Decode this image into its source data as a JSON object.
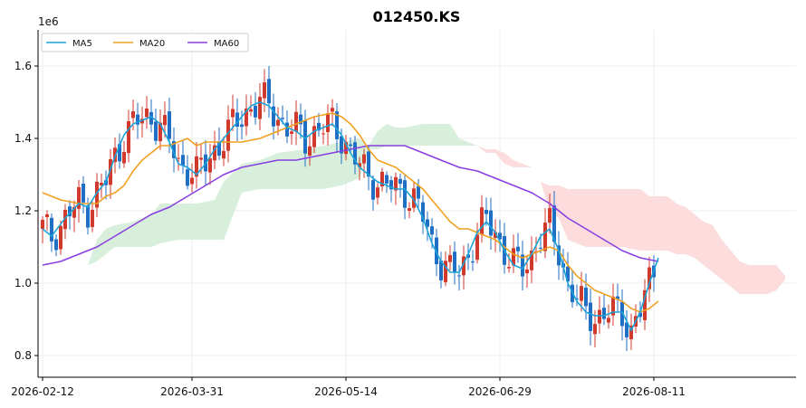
{
  "chart_data": {
    "type": "candlestick",
    "title": "012450.KS",
    "y_scale_label": "1e6",
    "xlabel": "",
    "ylabel": "",
    "ylim": [
      0.74,
      1.7
    ],
    "y_ticks": [
      0.8,
      1.0,
      1.2,
      1.4,
      1.6
    ],
    "y_tick_labels": [
      "0.8",
      "1.0",
      "1.2",
      "1.4",
      "1.6"
    ],
    "x_tick_labels": [
      {
        "index": 0,
        "label": "2026-02-12"
      },
      {
        "index": 33,
        "label": "2026-03-31"
      },
      {
        "index": 67,
        "label": "2026-05-14"
      },
      {
        "index": 101,
        "label": "2026-06-29"
      },
      {
        "index": 135,
        "label": "2026-08-11"
      }
    ],
    "n_days": 136,
    "x_max_index": 166,
    "grid": true,
    "legend_position": "top-left",
    "colors": {
      "up": "#d0392b",
      "down": "#1f6fc5",
      "ma5": "#1ca3d8",
      "ma20": "#f0a020",
      "ma60": "#8a3fe0",
      "cloud_bull": "#d8efdc",
      "cloud_bear": "#fcdcdc",
      "grid": "#eeeeee",
      "axis": "#000000"
    },
    "legend": [
      {
        "key": "ma5",
        "label": "MA5"
      },
      {
        "key": "ma20",
        "label": "MA20"
      },
      {
        "key": "ma60",
        "label": "MA60"
      }
    ],
    "ma5_ctrl": [
      [
        0,
        1.15
      ],
      [
        2,
        1.13
      ],
      [
        5,
        1.18
      ],
      [
        8,
        1.22
      ],
      [
        10,
        1.21
      ],
      [
        12,
        1.25
      ],
      [
        14,
        1.28
      ],
      [
        16,
        1.35
      ],
      [
        18,
        1.41
      ],
      [
        20,
        1.44
      ],
      [
        22,
        1.45
      ],
      [
        24,
        1.46
      ],
      [
        26,
        1.44
      ],
      [
        28,
        1.39
      ],
      [
        30,
        1.33
      ],
      [
        32,
        1.32
      ],
      [
        34,
        1.3
      ],
      [
        36,
        1.33
      ],
      [
        38,
        1.37
      ],
      [
        40,
        1.4
      ],
      [
        42,
        1.43
      ],
      [
        44,
        1.46
      ],
      [
        46,
        1.49
      ],
      [
        48,
        1.5
      ],
      [
        50,
        1.49
      ],
      [
        52,
        1.46
      ],
      [
        54,
        1.43
      ],
      [
        56,
        1.42
      ],
      [
        58,
        1.4
      ],
      [
        60,
        1.42
      ],
      [
        62,
        1.43
      ],
      [
        64,
        1.44
      ],
      [
        66,
        1.41
      ],
      [
        68,
        1.36
      ],
      [
        70,
        1.32
      ],
      [
        72,
        1.3
      ],
      [
        74,
        1.28
      ],
      [
        76,
        1.27
      ],
      [
        78,
        1.26
      ],
      [
        80,
        1.26
      ],
      [
        82,
        1.23
      ],
      [
        84,
        1.18
      ],
      [
        86,
        1.11
      ],
      [
        88,
        1.06
      ],
      [
        90,
        1.03
      ],
      [
        92,
        1.03
      ],
      [
        94,
        1.08
      ],
      [
        96,
        1.14
      ],
      [
        98,
        1.17
      ],
      [
        100,
        1.14
      ],
      [
        102,
        1.09
      ],
      [
        104,
        1.05
      ],
      [
        106,
        1.04
      ],
      [
        108,
        1.08
      ],
      [
        110,
        1.13
      ],
      [
        112,
        1.15
      ],
      [
        114,
        1.09
      ],
      [
        116,
        1.0
      ],
      [
        118,
        0.95
      ],
      [
        120,
        0.92
      ],
      [
        122,
        0.91
      ],
      [
        124,
        0.91
      ],
      [
        126,
        0.92
      ],
      [
        128,
        0.92
      ],
      [
        130,
        0.87
      ],
      [
        132,
        0.92
      ],
      [
        134,
        1.0
      ],
      [
        136,
        1.07
      ]
    ],
    "ma20_ctrl": [
      [
        0,
        1.25
      ],
      [
        4,
        1.23
      ],
      [
        8,
        1.22
      ],
      [
        12,
        1.22
      ],
      [
        14,
        1.24
      ],
      [
        16,
        1.25
      ],
      [
        18,
        1.27
      ],
      [
        20,
        1.31
      ],
      [
        22,
        1.34
      ],
      [
        24,
        1.36
      ],
      [
        26,
        1.38
      ],
      [
        28,
        1.38
      ],
      [
        30,
        1.39
      ],
      [
        32,
        1.4
      ],
      [
        34,
        1.38
      ],
      [
        36,
        1.39
      ],
      [
        38,
        1.39
      ],
      [
        40,
        1.39
      ],
      [
        44,
        1.39
      ],
      [
        48,
        1.4
      ],
      [
        52,
        1.42
      ],
      [
        56,
        1.44
      ],
      [
        60,
        1.46
      ],
      [
        64,
        1.47
      ],
      [
        66,
        1.46
      ],
      [
        68,
        1.44
      ],
      [
        70,
        1.41
      ],
      [
        72,
        1.37
      ],
      [
        74,
        1.34
      ],
      [
        76,
        1.33
      ],
      [
        78,
        1.32
      ],
      [
        80,
        1.3
      ],
      [
        84,
        1.26
      ],
      [
        86,
        1.23
      ],
      [
        88,
        1.2
      ],
      [
        90,
        1.17
      ],
      [
        92,
        1.15
      ],
      [
        94,
        1.15
      ],
      [
        96,
        1.14
      ],
      [
        100,
        1.12
      ],
      [
        102,
        1.1
      ],
      [
        104,
        1.08
      ],
      [
        106,
        1.07
      ],
      [
        108,
        1.08
      ],
      [
        110,
        1.09
      ],
      [
        112,
        1.1
      ],
      [
        114,
        1.09
      ],
      [
        116,
        1.05
      ],
      [
        118,
        1.02
      ],
      [
        120,
        1.0
      ],
      [
        122,
        0.98
      ],
      [
        124,
        0.97
      ],
      [
        126,
        0.96
      ],
      [
        128,
        0.95
      ],
      [
        130,
        0.93
      ],
      [
        132,
        0.92
      ],
      [
        134,
        0.93
      ],
      [
        136,
        0.95
      ]
    ],
    "ma60_ctrl": [
      [
        0,
        1.05
      ],
      [
        4,
        1.06
      ],
      [
        8,
        1.08
      ],
      [
        12,
        1.1
      ],
      [
        16,
        1.13
      ],
      [
        20,
        1.16
      ],
      [
        24,
        1.19
      ],
      [
        28,
        1.21
      ],
      [
        32,
        1.24
      ],
      [
        36,
        1.27
      ],
      [
        40,
        1.3
      ],
      [
        44,
        1.32
      ],
      [
        48,
        1.33
      ],
      [
        52,
        1.34
      ],
      [
        56,
        1.34
      ],
      [
        60,
        1.35
      ],
      [
        64,
        1.36
      ],
      [
        68,
        1.37
      ],
      [
        72,
        1.38
      ],
      [
        76,
        1.38
      ],
      [
        80,
        1.38
      ],
      [
        84,
        1.36
      ],
      [
        88,
        1.34
      ],
      [
        92,
        1.32
      ],
      [
        96,
        1.31
      ],
      [
        100,
        1.29
      ],
      [
        104,
        1.27
      ],
      [
        108,
        1.25
      ],
      [
        112,
        1.22
      ],
      [
        116,
        1.18
      ],
      [
        120,
        1.15
      ],
      [
        124,
        1.12
      ],
      [
        128,
        1.09
      ],
      [
        132,
        1.07
      ],
      [
        136,
        1.06
      ]
    ],
    "cloud_green": {
      "upper": [
        [
          0,
          0.94
        ],
        [
          1,
          0.96
        ],
        [
          2,
          0.99
        ],
        [
          4,
          1.01
        ],
        [
          6,
          1.04
        ],
        [
          8,
          1.05
        ],
        [
          10,
          1.05
        ],
        [
          12,
          1.12
        ],
        [
          14,
          1.15
        ],
        [
          16,
          1.16
        ],
        [
          20,
          1.17
        ],
        [
          24,
          1.19
        ],
        [
          26,
          1.22
        ],
        [
          30,
          1.22
        ],
        [
          34,
          1.22
        ],
        [
          38,
          1.23
        ],
        [
          40,
          1.28
        ],
        [
          44,
          1.33
        ],
        [
          48,
          1.34
        ],
        [
          52,
          1.36
        ],
        [
          58,
          1.37
        ],
        [
          62,
          1.38
        ],
        [
          66,
          1.39
        ],
        [
          70,
          1.4
        ],
        [
          72,
          1.38
        ],
        [
          74,
          1.42
        ],
        [
          76,
          1.44
        ],
        [
          78,
          1.43
        ],
        [
          80,
          1.43
        ],
        [
          84,
          1.44
        ],
        [
          90,
          1.44
        ],
        [
          92,
          1.4
        ],
        [
          96,
          1.38
        ]
      ],
      "lower": [
        [
          0,
          0.94
        ],
        [
          1,
          0.96
        ],
        [
          2,
          0.99
        ],
        [
          4,
          1.01
        ],
        [
          6,
          1.04
        ],
        [
          8,
          1.05
        ],
        [
          10,
          1.05
        ],
        [
          12,
          1.06
        ],
        [
          14,
          1.08
        ],
        [
          16,
          1.1
        ],
        [
          20,
          1.1
        ],
        [
          24,
          1.1
        ],
        [
          26,
          1.11
        ],
        [
          30,
          1.12
        ],
        [
          34,
          1.12
        ],
        [
          38,
          1.12
        ],
        [
          40,
          1.12
        ],
        [
          44,
          1.25
        ],
        [
          48,
          1.26
        ],
        [
          52,
          1.26
        ],
        [
          58,
          1.26
        ],
        [
          62,
          1.26
        ],
        [
          66,
          1.27
        ],
        [
          70,
          1.29
        ],
        [
          72,
          1.37
        ],
        [
          74,
          1.37
        ],
        [
          76,
          1.38
        ],
        [
          78,
          1.38
        ],
        [
          80,
          1.38
        ],
        [
          84,
          1.38
        ],
        [
          90,
          1.38
        ],
        [
          92,
          1.38
        ],
        [
          96,
          1.38
        ]
      ]
    },
    "cloud_red": {
      "upper": [
        [
          96,
          1.38
        ],
        [
          98,
          1.36
        ],
        [
          100,
          1.36
        ],
        [
          102,
          1.33
        ],
        [
          104,
          1.32
        ],
        [
          106,
          1.32
        ],
        [
          108,
          1.32
        ],
        [
          110,
          1.28
        ],
        [
          112,
          1.27
        ],
        [
          114,
          1.27
        ],
        [
          116,
          1.26
        ],
        [
          120,
          1.26
        ],
        [
          124,
          1.26
        ],
        [
          128,
          1.26
        ],
        [
          132,
          1.26
        ],
        [
          134,
          1.24
        ],
        [
          136,
          1.24
        ],
        [
          138,
          1.24
        ],
        [
          140,
          1.22
        ],
        [
          142,
          1.21
        ],
        [
          144,
          1.19
        ],
        [
          146,
          1.17
        ],
        [
          148,
          1.16
        ],
        [
          150,
          1.12
        ],
        [
          152,
          1.09
        ],
        [
          154,
          1.06
        ],
        [
          156,
          1.05
        ],
        [
          158,
          1.05
        ],
        [
          160,
          1.05
        ],
        [
          162,
          1.05
        ],
        [
          164,
          1.02
        ]
      ],
      "lower": [
        [
          96,
          1.38
        ],
        [
          98,
          1.37
        ],
        [
          100,
          1.37
        ],
        [
          102,
          1.36
        ],
        [
          104,
          1.34
        ],
        [
          106,
          1.33
        ],
        [
          108,
          1.32
        ],
        [
          110,
          1.28
        ],
        [
          112,
          1.2
        ],
        [
          114,
          1.18
        ],
        [
          116,
          1.12
        ],
        [
          120,
          1.1
        ],
        [
          124,
          1.1
        ],
        [
          128,
          1.1
        ],
        [
          132,
          1.09
        ],
        [
          134,
          1.09
        ],
        [
          136,
          1.09
        ],
        [
          138,
          1.09
        ],
        [
          140,
          1.08
        ],
        [
          142,
          1.08
        ],
        [
          144,
          1.07
        ],
        [
          146,
          1.05
        ],
        [
          148,
          1.03
        ],
        [
          150,
          1.01
        ],
        [
          152,
          0.99
        ],
        [
          154,
          0.97
        ],
        [
          156,
          0.97
        ],
        [
          158,
          0.97
        ],
        [
          160,
          0.97
        ],
        [
          162,
          0.98
        ],
        [
          164,
          1.01
        ]
      ]
    }
  }
}
